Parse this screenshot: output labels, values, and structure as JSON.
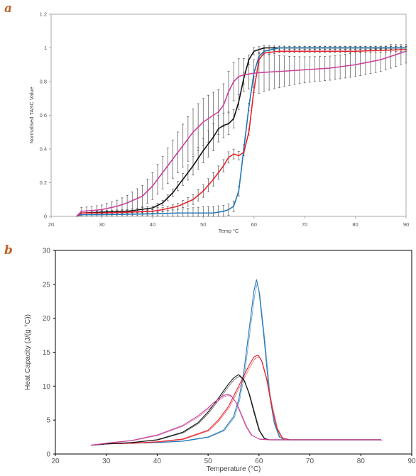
{
  "colors": {
    "black": "#111111",
    "blue": "#1f77b4",
    "red": "#e8202a",
    "magenta": "#c8409a",
    "errorbar": "#555555",
    "frame": "#999999",
    "letter": "#c0622a"
  },
  "chart_data": [
    {
      "panel": "a",
      "type": "line",
      "xlabel": "Temp °C",
      "ylabel": "Normalised TASC Value",
      "xlim": [
        20,
        90
      ],
      "ylim": [
        0,
        1.2
      ],
      "xticks": [
        "20",
        "30",
        "40",
        "50",
        "60",
        "70",
        "80",
        "90"
      ],
      "yticks": [
        "0",
        "0.2",
        "0.4",
        "0.6",
        "0.8",
        "1",
        "1.2"
      ],
      "grid": false,
      "error_bars": true,
      "series": [
        {
          "color": "black",
          "x": [
            25,
            26,
            30,
            35,
            40,
            42,
            44,
            46,
            48,
            50,
            52,
            53,
            54,
            55,
            56,
            57,
            58,
            59,
            60,
            62,
            65,
            70,
            80,
            90
          ],
          "y": [
            0,
            0.02,
            0.025,
            0.03,
            0.05,
            0.08,
            0.14,
            0.22,
            0.3,
            0.39,
            0.47,
            0.52,
            0.54,
            0.55,
            0.58,
            0.68,
            0.82,
            0.93,
            0.98,
            1.0,
            1.0,
            1.0,
            1.0,
            1.0
          ]
        },
        {
          "color": "blue",
          "x": [
            25,
            26,
            30,
            40,
            45,
            50,
            52,
            54,
            55,
            56,
            57,
            58,
            59,
            60,
            61,
            62,
            65,
            70,
            80,
            90
          ],
          "y": [
            0,
            0.01,
            0.01,
            0.015,
            0.02,
            0.02,
            0.02,
            0.03,
            0.04,
            0.06,
            0.15,
            0.4,
            0.65,
            0.85,
            0.95,
            0.98,
            1.0,
            1.0,
            1.0,
            1.0
          ]
        },
        {
          "color": "red",
          "x": [
            25,
            26,
            30,
            35,
            40,
            42,
            45,
            48,
            50,
            52,
            54,
            55,
            56,
            57,
            58,
            59,
            60,
            61,
            62,
            65,
            70,
            80,
            90
          ],
          "y": [
            0,
            0.02,
            0.02,
            0.025,
            0.03,
            0.04,
            0.06,
            0.1,
            0.15,
            0.22,
            0.3,
            0.35,
            0.37,
            0.36,
            0.38,
            0.5,
            0.75,
            0.93,
            0.97,
            0.98,
            0.98,
            0.98,
            0.99
          ]
        },
        {
          "color": "magenta",
          "x": [
            25,
            26,
            30,
            33,
            35,
            38,
            40,
            42,
            44,
            46,
            48,
            50,
            52,
            53,
            54,
            55,
            56,
            57,
            58,
            59,
            60,
            62,
            65,
            70,
            75,
            80,
            85,
            88,
            90
          ],
          "y": [
            0,
            0.03,
            0.04,
            0.06,
            0.08,
            0.12,
            0.18,
            0.26,
            0.34,
            0.42,
            0.5,
            0.56,
            0.6,
            0.62,
            0.66,
            0.74,
            0.8,
            0.83,
            0.84,
            0.845,
            0.85,
            0.855,
            0.86,
            0.87,
            0.88,
            0.9,
            0.93,
            0.96,
            0.98
          ]
        }
      ]
    },
    {
      "panel": "b",
      "type": "line",
      "xlabel": "Temperature (°C)",
      "ylabel": "Heat Capacity (J/(g·°C))",
      "xlim": [
        20,
        90
      ],
      "ylim": [
        0,
        30
      ],
      "xticks": [
        "20",
        "30",
        "40",
        "50",
        "60",
        "70",
        "80",
        "90"
      ],
      "yticks": [
        "0",
        "5",
        "10",
        "15",
        "20",
        "25",
        "30"
      ],
      "grid": false,
      "series": [
        {
          "color": "blue",
          "x": [
            27,
            30,
            35,
            40,
            45,
            50,
            53,
            55,
            56,
            57,
            58,
            59,
            59.5,
            60,
            61,
            62,
            63,
            64,
            65,
            70,
            80,
            84
          ],
          "y": [
            1.3,
            1.5,
            1.6,
            1.7,
            1.9,
            2.5,
            3.5,
            5.5,
            8,
            12,
            18,
            24,
            25.7,
            24,
            17,
            9,
            4.5,
            2.5,
            2.1,
            2.1,
            2.1,
            2.1
          ]
        },
        {
          "color": "red",
          "x": [
            27,
            30,
            35,
            40,
            45,
            50,
            52,
            54,
            56,
            58,
            59,
            59.8,
            60.5,
            61.5,
            62.5,
            63.5,
            64.5,
            66,
            70,
            80,
            84
          ],
          "y": [
            1.3,
            1.5,
            1.6,
            1.8,
            2.2,
            3.5,
            5,
            7,
            10,
            13,
            14.3,
            14.6,
            13.8,
            11,
            7,
            3.8,
            2.4,
            2.1,
            2.1,
            2.1,
            2.1
          ]
        },
        {
          "color": "black",
          "x": [
            27,
            30,
            35,
            40,
            45,
            48,
            50,
            52,
            54,
            55,
            56,
            57,
            58,
            59,
            60,
            61,
            62,
            65,
            70,
            80,
            84
          ],
          "y": [
            1.3,
            1.5,
            1.7,
            2.1,
            3.2,
            4.6,
            6.2,
            8.2,
            10.3,
            11.2,
            11.7,
            11.0,
            9.0,
            6.2,
            3.5,
            2.3,
            2.1,
            2.1,
            2.1,
            2.1,
            2.1
          ]
        },
        {
          "color": "magenta",
          "x": [
            27,
            30,
            35,
            40,
            45,
            48,
            50,
            51,
            52,
            53,
            53.8,
            54.5,
            55.5,
            56.5,
            57.5,
            58.5,
            60,
            62,
            65,
            70,
            80,
            84
          ],
          "y": [
            1.3,
            1.6,
            2.0,
            2.8,
            4.2,
            5.6,
            6.8,
            7.5,
            8.1,
            8.6,
            8.8,
            8.6,
            7.6,
            5.8,
            4.0,
            2.8,
            2.2,
            2.1,
            2.1,
            2.1,
            2.1,
            2.1
          ]
        }
      ]
    }
  ]
}
